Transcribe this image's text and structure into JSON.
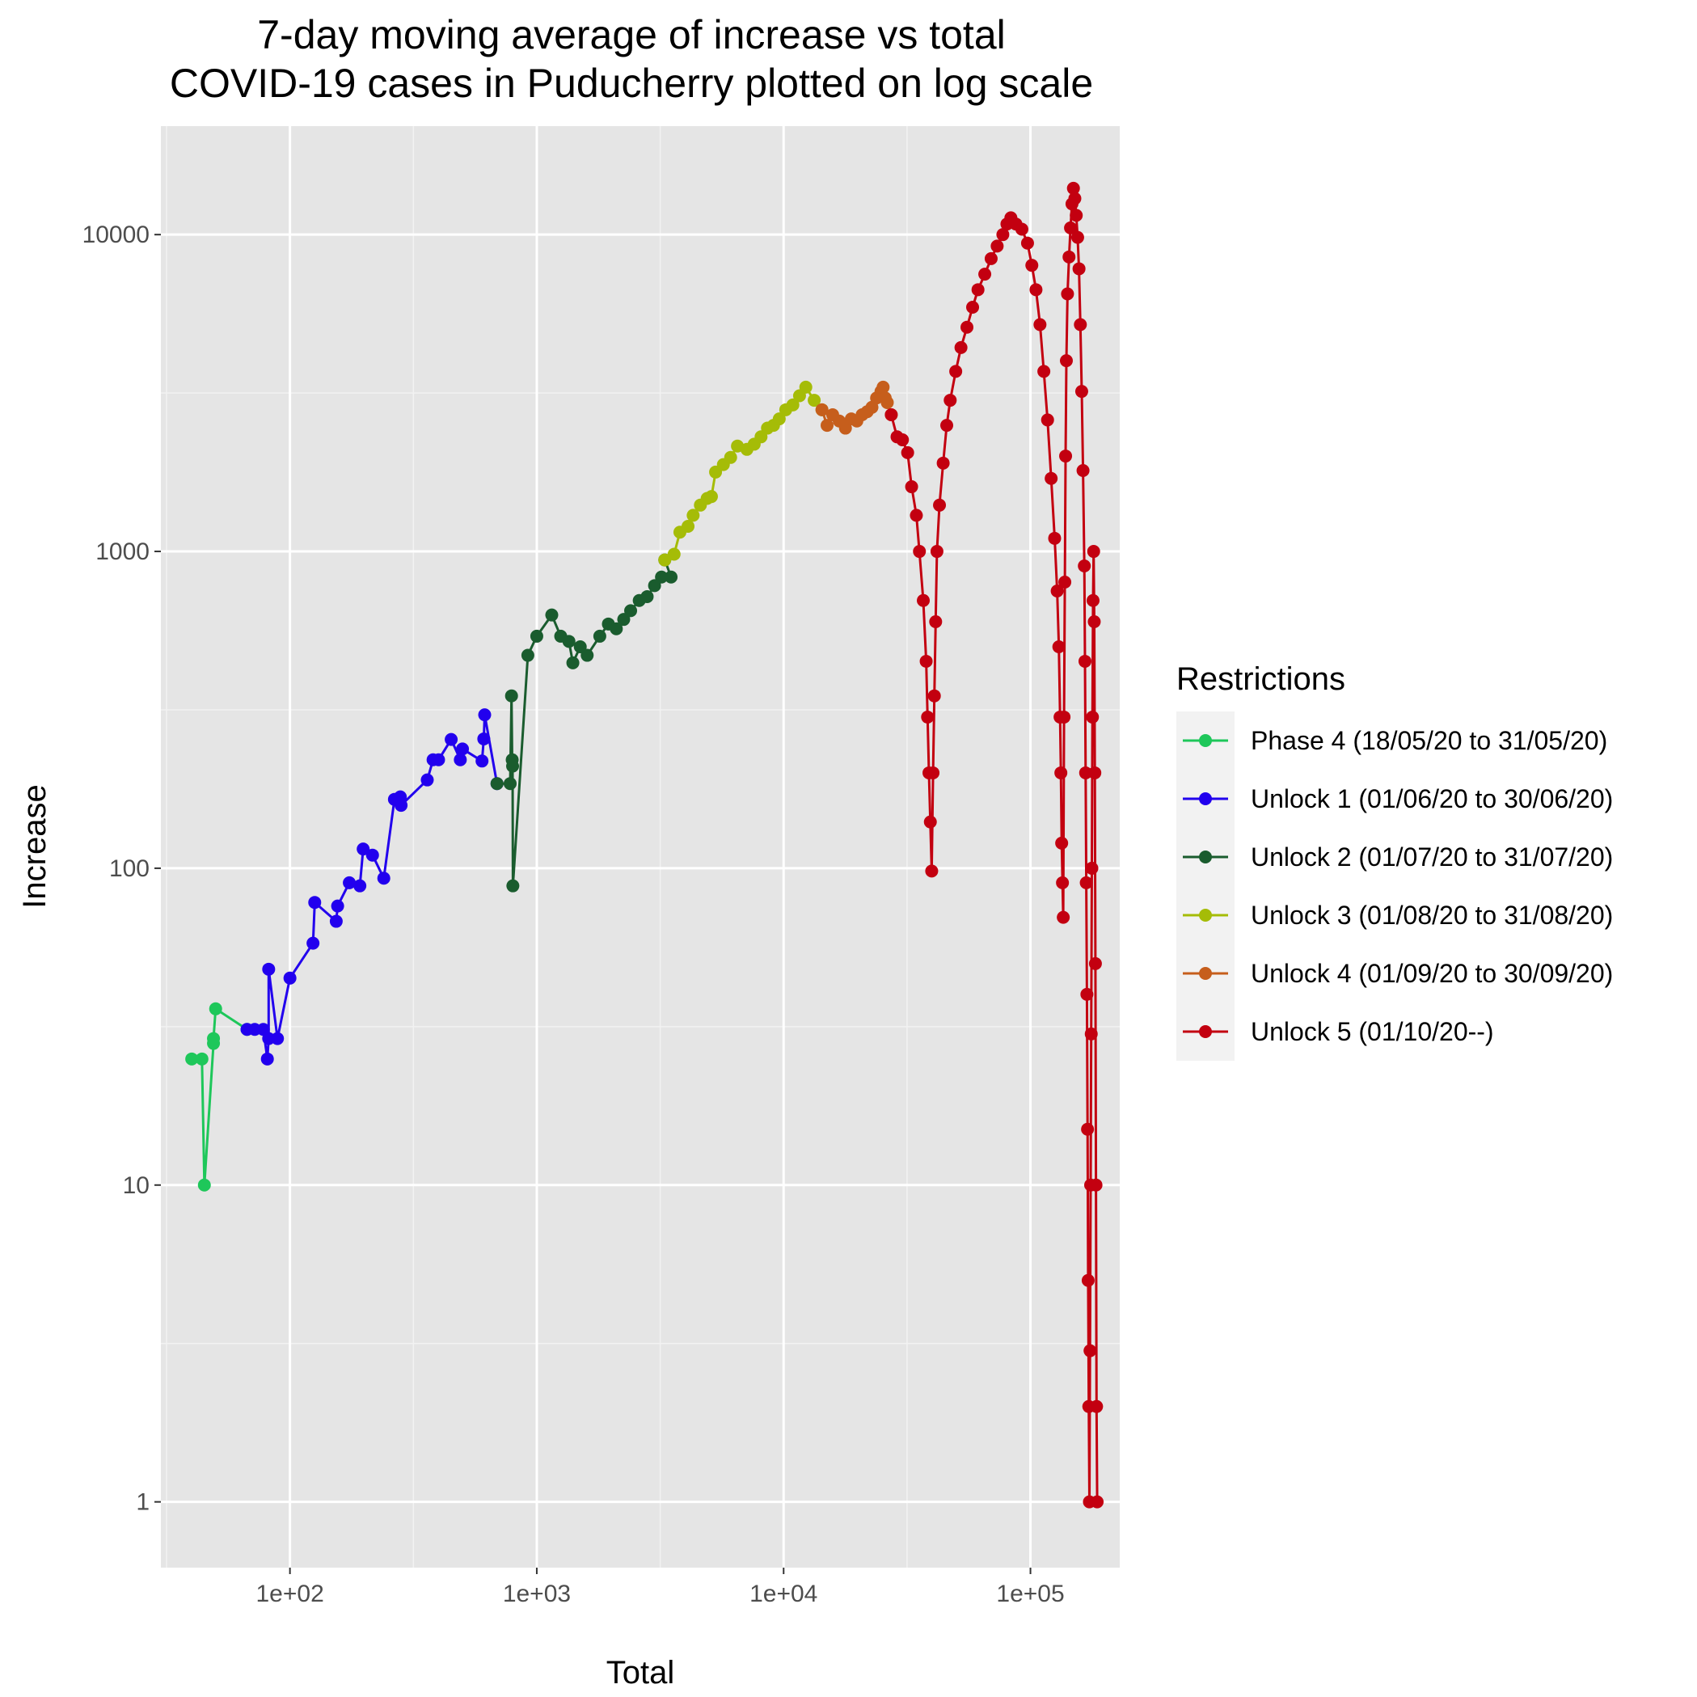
{
  "chart_data": {
    "type": "line",
    "title_lines": [
      "7-day moving average of increase vs total",
      "COVID-19 cases in Puducherry plotted on log scale"
    ],
    "xlabel": "Total",
    "ylabel": "Increase",
    "x_scale": "log10",
    "y_scale": "log10",
    "xlim": [
      30,
      230000
    ],
    "ylim": [
      0.62,
      22000
    ],
    "x_ticks": [
      100,
      1000,
      10000,
      100000
    ],
    "x_tick_labels": [
      "1e+02",
      "1e+03",
      "1e+04",
      "1e+05"
    ],
    "y_ticks": [
      1,
      10,
      100,
      1000,
      10000
    ],
    "y_tick_labels": [
      "1",
      "10",
      "100",
      "1000",
      "10000"
    ],
    "background": "#e5e5e5",
    "grid": true,
    "legend": {
      "title": "Restrictions",
      "placement": "right"
    },
    "series": [
      {
        "name": "Phase 4 (18/05/20 to 31/05/20)",
        "color": "#1ec75a",
        "points": [
          [
            40,
            25
          ],
          [
            44,
            25
          ],
          [
            45,
            10
          ],
          [
            49,
            28
          ],
          [
            49,
            29
          ],
          [
            50,
            36
          ],
          [
            67,
            31
          ]
        ]
      },
      {
        "name": "Unlock 1 (01/06/20 to 30/06/20)",
        "color": "#2200ee",
        "points": [
          [
            67,
            31
          ],
          [
            72,
            31
          ],
          [
            78,
            31
          ],
          [
            81,
            25
          ],
          [
            82,
            29
          ],
          [
            82,
            48
          ],
          [
            89,
            29
          ],
          [
            100,
            45
          ],
          [
            124,
            58
          ],
          [
            126,
            78
          ],
          [
            154,
            68
          ],
          [
            156,
            76
          ],
          [
            174,
            90
          ],
          [
            192,
            88
          ],
          [
            198,
            115
          ],
          [
            216,
            110
          ],
          [
            240,
            93
          ],
          [
            265,
            165
          ],
          [
            280,
            168
          ],
          [
            282,
            158
          ],
          [
            360,
            190
          ],
          [
            380,
            220
          ],
          [
            400,
            220
          ],
          [
            450,
            255
          ],
          [
            490,
            220
          ],
          [
            500,
            238
          ],
          [
            600,
            218
          ],
          [
            610,
            256
          ],
          [
            615,
            305
          ],
          [
            690,
            185
          ]
        ]
      },
      {
        "name": "Unlock 2 (01/07/20 to 31/07/20)",
        "color": "#1a5c2e",
        "points": [
          [
            690,
            185
          ],
          [
            780,
            185
          ],
          [
            790,
            350
          ],
          [
            795,
            220
          ],
          [
            798,
            210
          ],
          [
            800,
            88
          ],
          [
            920,
            470
          ],
          [
            1000,
            540
          ],
          [
            1150,
            630
          ],
          [
            1250,
            540
          ],
          [
            1350,
            520
          ],
          [
            1400,
            445
          ],
          [
            1500,
            500
          ],
          [
            1600,
            470
          ],
          [
            1800,
            540
          ],
          [
            1950,
            590
          ],
          [
            2100,
            570
          ],
          [
            2250,
            610
          ],
          [
            2400,
            650
          ],
          [
            2600,
            700
          ],
          [
            2800,
            720
          ],
          [
            3000,
            780
          ],
          [
            3200,
            830
          ],
          [
            3500,
            830
          ],
          [
            3300,
            940
          ]
        ]
      },
      {
        "name": "Unlock 3 (01/08/20 to 31/08/20)",
        "color": "#a5bc07",
        "points": [
          [
            3300,
            940
          ],
          [
            3600,
            980
          ],
          [
            3800,
            1150
          ],
          [
            4100,
            1200
          ],
          [
            4300,
            1300
          ],
          [
            4600,
            1400
          ],
          [
            4900,
            1470
          ],
          [
            5100,
            1490
          ],
          [
            5300,
            1780
          ],
          [
            5700,
            1880
          ],
          [
            6100,
            1980
          ],
          [
            6500,
            2150
          ],
          [
            7100,
            2100
          ],
          [
            7600,
            2180
          ],
          [
            8100,
            2300
          ],
          [
            8600,
            2450
          ],
          [
            9100,
            2500
          ],
          [
            9600,
            2620
          ],
          [
            10200,
            2800
          ],
          [
            10900,
            2900
          ],
          [
            11600,
            3100
          ],
          [
            12300,
            3300
          ],
          [
            13300,
            3000
          ],
          [
            14300,
            2800
          ]
        ]
      },
      {
        "name": "Unlock 4 (01/09/20 to 30/09/20)",
        "color": "#c65e1c",
        "points": [
          [
            14300,
            2800
          ],
          [
            15000,
            2500
          ],
          [
            15800,
            2700
          ],
          [
            16800,
            2580
          ],
          [
            17800,
            2450
          ],
          [
            18800,
            2620
          ],
          [
            19800,
            2580
          ],
          [
            20800,
            2700
          ],
          [
            21800,
            2760
          ],
          [
            22800,
            2850
          ],
          [
            23800,
            3050
          ],
          [
            24800,
            3200
          ],
          [
            25300,
            3300
          ],
          [
            25800,
            3050
          ],
          [
            26300,
            2950
          ],
          [
            27300,
            2700
          ]
        ]
      },
      {
        "name": "Unlock 5 (01/10/20--)",
        "color": "#c30010",
        "points": [
          [
            27300,
            2700
          ],
          [
            28800,
            2300
          ],
          [
            30300,
            2250
          ],
          [
            31800,
            2050
          ],
          [
            33000,
            1600
          ],
          [
            34500,
            1300
          ],
          [
            35500,
            1000
          ],
          [
            36800,
            700
          ],
          [
            37800,
            450
          ],
          [
            38300,
            300
          ],
          [
            38800,
            200
          ],
          [
            39300,
            140
          ],
          [
            39800,
            98
          ],
          [
            40300,
            200
          ],
          [
            40800,
            350
          ],
          [
            41300,
            600
          ],
          [
            41800,
            1000
          ],
          [
            42800,
            1400
          ],
          [
            44300,
            1900
          ],
          [
            45800,
            2500
          ],
          [
            47300,
            3000
          ],
          [
            49800,
            3700
          ],
          [
            52300,
            4400
          ],
          [
            55300,
            5100
          ],
          [
            58300,
            5900
          ],
          [
            61300,
            6700
          ],
          [
            65300,
            7500
          ],
          [
            69300,
            8400
          ],
          [
            73300,
            9200
          ],
          [
            77300,
            10000
          ],
          [
            80300,
            10800
          ],
          [
            83300,
            11300
          ],
          [
            87300,
            10800
          ],
          [
            92300,
            10400
          ],
          [
            97300,
            9400
          ],
          [
            101300,
            8000
          ],
          [
            105300,
            6700
          ],
          [
            109300,
            5200
          ],
          [
            113300,
            3700
          ],
          [
            117300,
            2600
          ],
          [
            121300,
            1700
          ],
          [
            125300,
            1100
          ],
          [
            128300,
            750
          ],
          [
            130300,
            500
          ],
          [
            131800,
            300
          ],
          [
            132800,
            200
          ],
          [
            133800,
            120
          ],
          [
            134800,
            90
          ],
          [
            135800,
            70
          ],
          [
            136800,
            300
          ],
          [
            137800,
            800
          ],
          [
            138800,
            2000
          ],
          [
            139800,
            4000
          ],
          [
            141300,
            6500
          ],
          [
            143300,
            8500
          ],
          [
            145300,
            10500
          ],
          [
            147300,
            12500
          ],
          [
            149300,
            14000
          ],
          [
            151300,
            13000
          ],
          [
            153300,
            11500
          ],
          [
            155300,
            9800
          ],
          [
            157300,
            7800
          ],
          [
            159300,
            5200
          ],
          [
            161300,
            3200
          ],
          [
            163300,
            1800
          ],
          [
            165300,
            900
          ],
          [
            166300,
            450
          ],
          [
            167300,
            200
          ],
          [
            168300,
            90
          ],
          [
            169300,
            40
          ],
          [
            170300,
            15
          ],
          [
            171300,
            5
          ],
          [
            172300,
            2
          ],
          [
            173300,
            1
          ],
          [
            174300,
            3
          ],
          [
            175300,
            10
          ],
          [
            176300,
            30
          ],
          [
            177300,
            100
          ],
          [
            178300,
            300
          ],
          [
            179300,
            700
          ],
          [
            180300,
            1000
          ],
          [
            181300,
            600
          ],
          [
            182300,
            200
          ],
          [
            183300,
            50
          ],
          [
            184300,
            10
          ],
          [
            185300,
            2
          ],
          [
            186300,
            1
          ]
        ]
      }
    ]
  }
}
